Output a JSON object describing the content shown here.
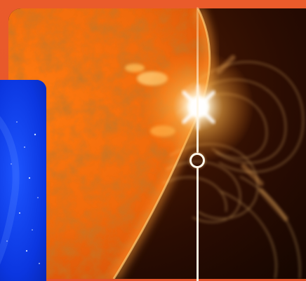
{
  "image": {
    "subject": "solar-flare",
    "palette": {
      "background_frame": "#e85a2a",
      "sun_core": "#ff9a1f",
      "sun_dark": "#8a2a05",
      "flare_glow": "#fff6e0",
      "space": "#120600",
      "inset_blue": "#0a2fd6"
    }
  },
  "marker": {
    "icon": "timeline-scrubber-icon",
    "line_color": "#fff8ea"
  }
}
